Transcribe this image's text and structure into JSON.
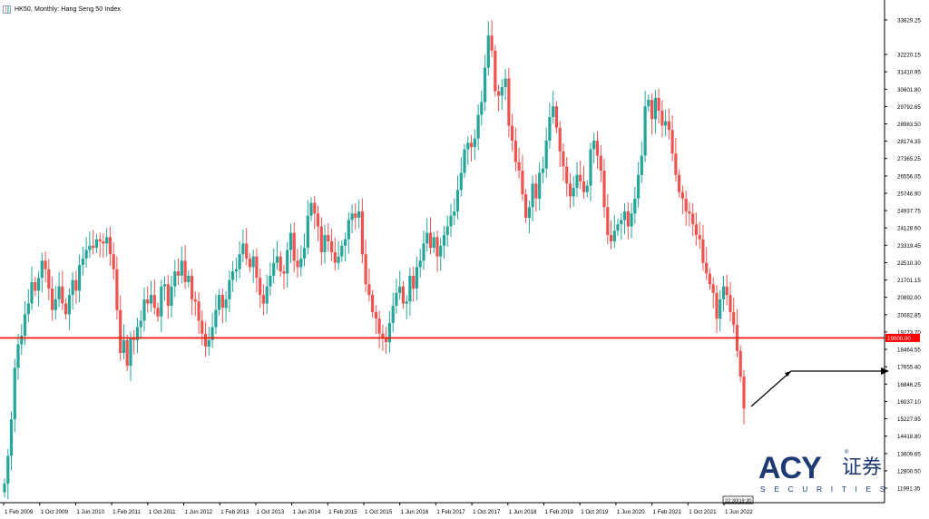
{
  "header": {
    "title": "HK50, Monthly:  Hang Seng 50 Index",
    "icon": "chart-window-icon"
  },
  "logo": {
    "brand": "ACY",
    "chinese": "证券",
    "sub": "SECURITIES",
    "reg": "®"
  },
  "colors": {
    "bull": "#26a69a",
    "bear": "#ef5350",
    "level_line": "#ff0000",
    "arrow": "#000000",
    "axis_text": "#000000",
    "logo": "#1d3a73"
  },
  "chart_data": {
    "type": "candlestick",
    "symbol": "HK50",
    "timeframe": "Monthly",
    "ylim": [
      11500,
      34300
    ],
    "y_ticks": [
      "33829.25",
      "32220.15",
      "31410.95",
      "30601.80",
      "29792.65",
      "28983.50",
      "28174.35",
      "27365.25",
      "26556.05",
      "25746.90",
      "24937.75",
      "24128.60",
      "23319.45",
      "22510.30",
      "21701.15",
      "20892.00",
      "20082.85",
      "19273.70",
      "18464.55",
      "17655.40",
      "16846.25",
      "16037.10",
      "15227.95",
      "14418.80",
      "13609.65",
      "12800.50",
      "11991.35"
    ],
    "x_ticks": [
      "1 Feb 2009",
      "1 Oct 2009",
      "1 Jun 2010",
      "1 Feb 2011",
      "1 Oct 2011",
      "1 Jun 2012",
      "1 Feb 2013",
      "1 Oct 2013",
      "1 Jun 2014",
      "1 Feb 2015",
      "1 Oct 2015",
      "1 Jun 2016",
      "1 Feb 2017",
      "1 Oct 2017",
      "1 Jun 2018",
      "1 Feb 2019",
      "1 Oct 2019",
      "1 Jun 2020",
      "1 Feb 2021",
      "1 Oct 2021",
      "1 Jun 2022"
    ],
    "horizontal_level": {
      "value": 19000,
      "label": "19000.00"
    },
    "crosshair_time_label": "22:30|19:30",
    "closes": [
      12200,
      13500,
      15200,
      17600,
      18700,
      19100,
      20100,
      20600,
      21600,
      21200,
      21800,
      22600,
      22200,
      21300,
      20300,
      20800,
      21400,
      20600,
      20100,
      21000,
      21700,
      21200,
      22400,
      22700,
      23100,
      23300,
      23200,
      23600,
      23500,
      23400,
      23700,
      22900,
      22200,
      20300,
      18300,
      18900,
      17700,
      19000,
      18900,
      19500,
      19800,
      20800,
      20600,
      21000,
      20400,
      20000,
      21400,
      21500,
      20500,
      21400,
      22100,
      21900,
      22600,
      21600,
      21900,
      20800,
      20700,
      19800,
      19200,
      18600,
      18900,
      19500,
      20300,
      21000,
      20400,
      20800,
      21700,
      22100,
      22200,
      22900,
      23400,
      22700,
      22300,
      22800,
      21800,
      21000,
      20600,
      21400,
      21900,
      22500,
      22800,
      22100,
      22000,
      23100,
      23900,
      22600,
      22300,
      22700,
      23200,
      24700,
      25300,
      24800,
      24200,
      23000,
      23800,
      23500,
      23000,
      22500,
      22800,
      23300,
      23600,
      24500,
      24800,
      24600,
      24900,
      22900,
      21500,
      21000,
      20200,
      19900,
      19200,
      19000,
      18800,
      19700,
      20500,
      21100,
      21400,
      20600,
      20700,
      21900,
      21300,
      22300,
      22600,
      23400,
      23900,
      23200,
      23700,
      22800,
      23300,
      23800,
      24200,
      24700,
      24900,
      25900,
      26700,
      27800,
      28100,
      27900,
      28300,
      29400,
      30000,
      31600,
      33100,
      32400,
      30500,
      30300,
      30700,
      31100,
      28900,
      28200,
      27200,
      26800,
      25700,
      24600,
      25100,
      26200,
      25500,
      26700,
      26900,
      28200,
      29300,
      29800,
      28800,
      27700,
      27000,
      26200,
      25600,
      26000,
      26600,
      26300,
      25800,
      26100,
      27800,
      28200,
      27500,
      26800,
      25100,
      23800,
      23500,
      24000,
      24300,
      24500,
      24900,
      24200,
      24800,
      25500,
      26600,
      27500,
      29800,
      30100,
      29200,
      30200,
      29600,
      28900,
      29100,
      28700,
      27600,
      26600,
      25800,
      25500,
      24900,
      24800,
      24300,
      23800,
      23600,
      22500,
      22000,
      21500,
      21100,
      19900,
      20800,
      21400,
      21000,
      20200,
      19600,
      18400,
      17200,
      15700
    ]
  }
}
